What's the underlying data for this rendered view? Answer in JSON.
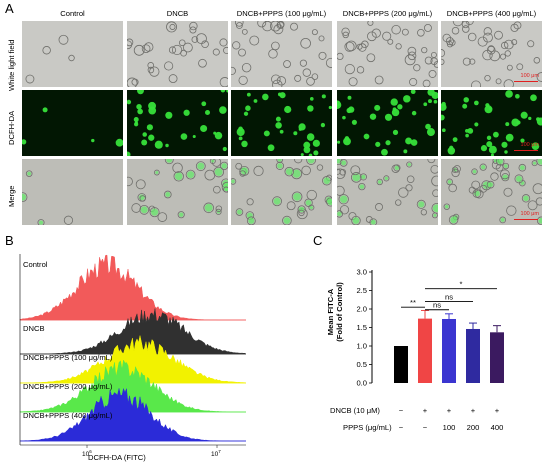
{
  "panel_a": {
    "letter": "A",
    "columns": [
      "Control",
      "DNCB",
      "DNCB+PPPS (100 μg/mL)",
      "DNCB+PPPS (200 μg/mL)",
      "DNCB+PPPS (400 μg/mL)"
    ],
    "rows": [
      "White light field",
      "DCFH-DA",
      "Merge"
    ],
    "scale_bar": "100 μm"
  },
  "panel_b": {
    "letter": "B",
    "xlabel": "DCFH-DA (FITC)",
    "tick_10_6": "10",
    "tick_10_6_exp": "6",
    "tick_10_7": "10",
    "tick_10_7_exp": "7",
    "tracks": [
      {
        "label": "Control",
        "color": "#f25a5a"
      },
      {
        "label": "DNCB",
        "color": "#303030"
      },
      {
        "label": "DNCB+PPPS (100 μg/mL)",
        "color": "#f2f200"
      },
      {
        "label": "DNCB+PPPS (200 μg/mL)",
        "color": "#59e84a"
      },
      {
        "label": "DNCB+PPPS (400 μg/mL)",
        "color": "#2b2bd8"
      }
    ]
  },
  "panel_c": {
    "letter": "C",
    "row_dncb_label": "DNCB (10 μM)",
    "row_ppps_label": "PPPS  (μg/mL)",
    "dncb_signs": [
      "−",
      "+",
      "+",
      "+",
      "+"
    ],
    "ppps_values": [
      "−",
      "−",
      "100",
      "200",
      "400"
    ],
    "sig": {
      "s1": "**",
      "s2": "ns",
      "s3": "ns",
      "s4": "*"
    }
  },
  "chart_data": {
    "type": "bar",
    "categories": [
      "Control",
      "DNCB",
      "DNCB+PPPS 100",
      "DNCB+PPPS 200",
      "DNCB+PPPS 400"
    ],
    "values": [
      1.0,
      1.74,
      1.73,
      1.46,
      1.37
    ],
    "errors": [
      0.0,
      0.22,
      0.14,
      0.16,
      0.18
    ],
    "colors": [
      "#000000",
      "#f04545",
      "#3b35d0",
      "#2f2aa0",
      "#3b1a60"
    ],
    "ylabel": "Mean FITC-A\n(Fold of Control)",
    "ylabel_line1": "Mean FITC-A",
    "ylabel_line2": "(Fold of Control)",
    "ylim": [
      0,
      3.0
    ],
    "yticks": [
      "0.0",
      "0.5",
      "1.0",
      "1.5",
      "2.0",
      "2.5",
      "3.0"
    ]
  }
}
